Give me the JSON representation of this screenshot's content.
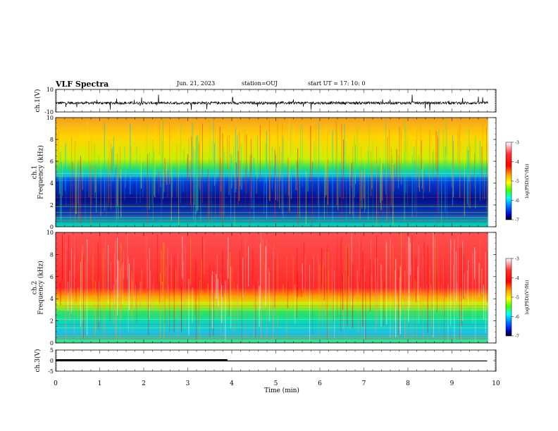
{
  "header": {
    "title": "VLF Spectra",
    "date": "Jun. 21, 2023",
    "station": "station=OUJ",
    "start": "start UT = 17: 10: 0"
  },
  "colors": {
    "colormap": [
      "#ffffff",
      "#ff4040",
      "#ff0000",
      "#ffa500",
      "#ffff00",
      "#80ff00",
      "#00ff00",
      "#00ffff",
      "#0080ff",
      "#0000ff",
      "#00008b",
      "#000030"
    ]
  },
  "chart_data": [
    {
      "type": "line",
      "ylabel": "ch.1(V)",
      "ylim": [
        -10,
        10
      ],
      "yticks": [
        "10",
        "-10"
      ],
      "x": [
        0,
        10
      ],
      "description_level": -2
    },
    {
      "type": "heatmap",
      "ylabel": "ch.1\nFrequency (kHz)",
      "ylim": [
        0,
        10
      ],
      "yticks": [
        "0",
        "2",
        "4",
        "6",
        "8",
        "10"
      ],
      "colorbar": {
        "label": "log(PSD)(V²/Hz)",
        "ticks": [
          "-3",
          "-4",
          "-5",
          "-6",
          "-7"
        ],
        "range": [
          -7,
          -3
        ]
      },
      "band_boundary_khz": 4.5
    },
    {
      "type": "heatmap",
      "ylabel": "ch.2\nFrequency (kHz)",
      "ylim": [
        0,
        10
      ],
      "yticks": [
        "0",
        "2",
        "4",
        "6",
        "8",
        "10"
      ],
      "colorbar": {
        "label": "log(PSD)(V²/Hz)",
        "ticks": [
          "-3",
          "-4",
          "-5",
          "-6",
          "-7"
        ],
        "range": [
          -7,
          -3
        ]
      },
      "band_boundary_khz": 4.0
    },
    {
      "type": "line",
      "ylabel": "ch.3(V)",
      "ylim": [
        -5,
        5
      ],
      "yticks": [
        "5",
        "0",
        "-5"
      ],
      "series": [
        {
          "x": [
            0,
            3.9
          ],
          "y": [
            0,
            0
          ]
        },
        {
          "x": [
            0,
            9.8
          ],
          "y": [
            0,
            0
          ]
        }
      ]
    }
  ],
  "xaxis": {
    "label": "Time (min)",
    "ticks": [
      "0",
      "1",
      "2",
      "3",
      "4",
      "5",
      "6",
      "7",
      "8",
      "9",
      "10"
    ],
    "range": [
      0,
      10
    ]
  }
}
